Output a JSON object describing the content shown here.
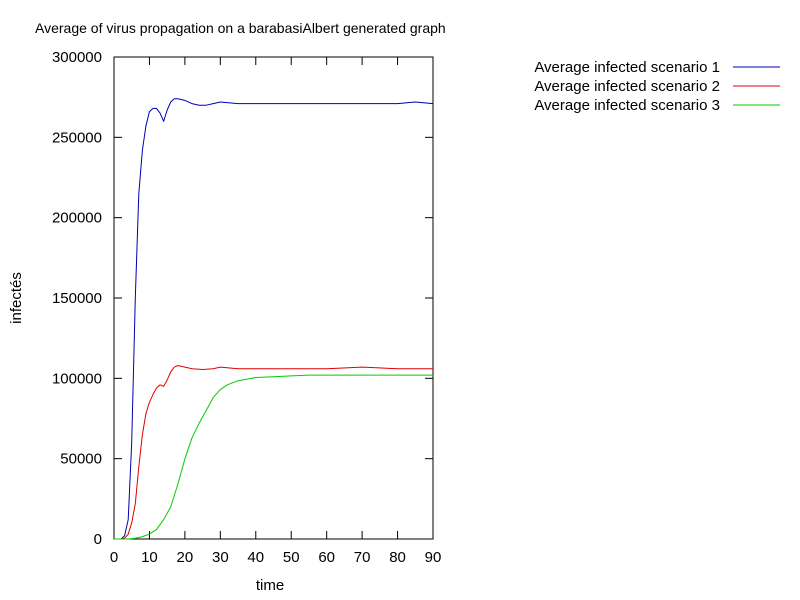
{
  "chart_data": {
    "type": "line",
    "title": "Average of virus propagation on a barabasiAlbert generated graph",
    "xlabel": "time",
    "ylabel": "infectés",
    "xlim": [
      0,
      90
    ],
    "ylim": [
      0,
      300000
    ],
    "xticks": [
      0,
      10,
      20,
      30,
      40,
      50,
      60,
      70,
      80,
      90
    ],
    "yticks": [
      0,
      50000,
      100000,
      150000,
      200000,
      250000,
      300000
    ],
    "grid": false,
    "legend_position": "outside-top-right",
    "series": [
      {
        "name": "Average infected scenario 1",
        "color": "#0000b0",
        "x": [
          0,
          2,
          3,
          4,
          5,
          6,
          7,
          8,
          9,
          10,
          11,
          12,
          13,
          14,
          15,
          16,
          17,
          18,
          20,
          22,
          24,
          26,
          28,
          30,
          35,
          40,
          50,
          60,
          70,
          80,
          85,
          90
        ],
        "y": [
          0,
          0,
          2000,
          12000,
          60000,
          150000,
          215000,
          242000,
          257000,
          266000,
          268000,
          268000,
          265000,
          260000,
          267000,
          272000,
          274000,
          274000,
          273000,
          271000,
          270000,
          270000,
          271000,
          272000,
          271000,
          271000,
          271000,
          271000,
          271000,
          271000,
          272000,
          271000
        ]
      },
      {
        "name": "Average infected scenario 2",
        "color": "#e00000",
        "x": [
          0,
          2,
          3,
          4,
          5,
          6,
          7,
          8,
          9,
          10,
          11,
          12,
          13,
          14,
          15,
          16,
          17,
          18,
          20,
          22,
          25,
          28,
          30,
          35,
          40,
          50,
          60,
          70,
          80,
          90
        ],
        "y": [
          0,
          0,
          500,
          3000,
          10000,
          22000,
          45000,
          65000,
          78000,
          85000,
          90000,
          94000,
          96000,
          95000,
          99000,
          104000,
          107000,
          108000,
          107000,
          106000,
          105500,
          106000,
          107000,
          106000,
          106000,
          106000,
          106000,
          107000,
          106000,
          106000
        ]
      },
      {
        "name": "Average infected scenario 3",
        "color": "#00cc00",
        "x": [
          0,
          4,
          6,
          8,
          10,
          12,
          14,
          16,
          18,
          20,
          22,
          24,
          26,
          28,
          30,
          32,
          35,
          40,
          45,
          50,
          55,
          60,
          70,
          80,
          90
        ],
        "y": [
          0,
          0,
          500,
          1500,
          3000,
          6000,
          12000,
          20000,
          34000,
          50000,
          63000,
          72000,
          80000,
          88000,
          93000,
          96000,
          98500,
          100500,
          101000,
          101500,
          102000,
          102000,
          102000,
          102000,
          102000
        ]
      }
    ]
  }
}
